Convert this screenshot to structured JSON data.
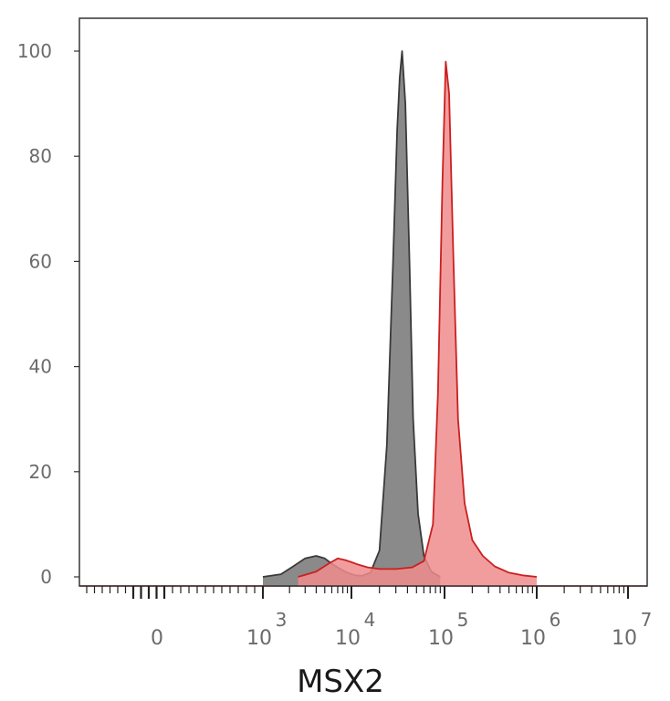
{
  "chart_data": {
    "type": "area",
    "title": "",
    "xlabel": "MSX2",
    "ylabel": "",
    "x_scale": "biexponential",
    "ylim": [
      0,
      100
    ],
    "yticks": [
      0,
      20,
      40,
      60,
      80,
      100
    ],
    "xticks": [
      {
        "base": "0",
        "exp": "",
        "value": 0
      },
      {
        "base": "10",
        "exp": "3",
        "value": 1000
      },
      {
        "base": "10",
        "exp": "4",
        "value": 10000
      },
      {
        "base": "10",
        "exp": "5",
        "value": 100000
      },
      {
        "base": "10",
        "exp": "6",
        "value": 1000000
      },
      {
        "base": "10",
        "exp": "7",
        "value": 10000000
      }
    ],
    "grid": false,
    "legend": "none",
    "series": [
      {
        "color": "#3a3a3a",
        "fill": "#8a8a8a",
        "x": [
          1000,
          1600,
          2200,
          3000,
          4000,
          5000,
          6000,
          7500,
          9000,
          11000,
          13000,
          16000,
          20000,
          24000,
          28000,
          31000,
          33000,
          35000,
          38000,
          42000,
          46000,
          52000,
          60000,
          72000,
          90000
        ],
        "y": [
          0,
          0.5,
          2,
          3.5,
          4,
          3.5,
          2.5,
          1.5,
          0.8,
          0.3,
          0.2,
          0.8,
          5,
          25,
          60,
          85,
          95,
          100,
          90,
          60,
          30,
          12,
          4,
          1,
          0
        ]
      },
      {
        "color": "#cc1f1f",
        "fill": "#ee8c8c",
        "x": [
          2500,
          4000,
          5500,
          7000,
          8500,
          10000,
          12000,
          15000,
          20000,
          30000,
          45000,
          60000,
          75000,
          85000,
          95000,
          103000,
          112000,
          125000,
          140000,
          165000,
          200000,
          260000,
          350000,
          500000,
          700000,
          1000000
        ],
        "y": [
          0,
          1,
          2.5,
          3.5,
          3.2,
          2.8,
          2.3,
          1.8,
          1.5,
          1.5,
          1.8,
          3,
          10,
          35,
          75,
          98,
          92,
          60,
          30,
          14,
          7,
          4,
          2,
          0.8,
          0.3,
          0
        ]
      }
    ]
  }
}
